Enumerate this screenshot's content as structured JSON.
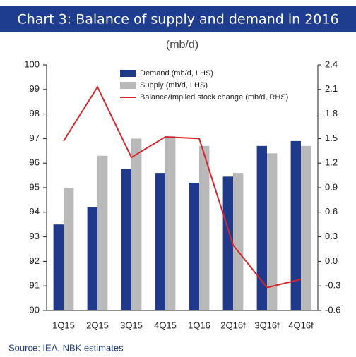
{
  "chart_data": {
    "type": "bar",
    "title": "Chart 3: Balance of supply and demand in 2016",
    "subtitle": "(mb/d)",
    "source": "Source: IEA, NBK estimates",
    "categories": [
      "1Q15",
      "2Q15",
      "3Q15",
      "4Q15",
      "1Q16",
      "2Q16f",
      "3Q16f",
      "4Q16f"
    ],
    "series": [
      {
        "name": "Demand (mb/d, LHS)",
        "type": "bar",
        "color": "#1f3a8a",
        "values": [
          93.5,
          94.2,
          95.75,
          95.6,
          95.2,
          95.45,
          96.7,
          96.9
        ]
      },
      {
        "name": "Supply (mb/d, LHS)",
        "type": "bar",
        "color": "#b9b9b9",
        "values": [
          95.0,
          96.3,
          97.0,
          97.1,
          96.7,
          95.6,
          96.4,
          96.7
        ]
      },
      {
        "name": "Balance/Implied stock change (mb/d, RHS)",
        "type": "line",
        "axis": "y2",
        "color": "#d7262b",
        "values": [
          1.47,
          2.13,
          1.27,
          1.52,
          1.5,
          0.2,
          -0.32,
          -0.22
        ]
      }
    ],
    "ylim": [
      90,
      100
    ],
    "yticks": [
      90,
      91,
      92,
      93,
      94,
      95,
      96,
      97,
      98,
      99,
      100
    ],
    "y2lim": [
      -0.6,
      2.4
    ],
    "y2ticks": [
      -0.6,
      -0.3,
      {
        "value": 0,
        "label": "0.0"
      },
      0.3,
      0.6,
      0.9,
      1.2,
      1.5,
      1.8,
      2.1,
      2.4
    ],
    "grid": false
  }
}
